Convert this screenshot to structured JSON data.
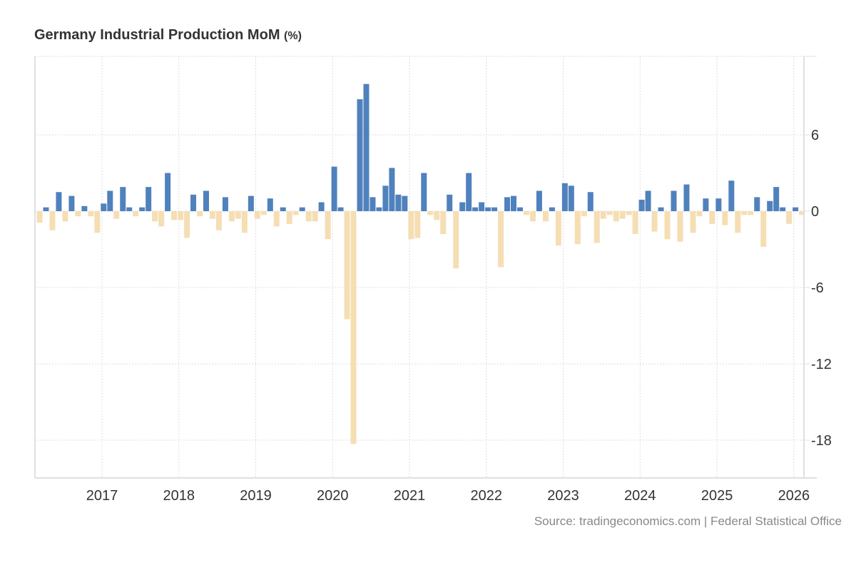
{
  "header": {
    "title": "Germany Industrial Production MoM",
    "unit": "(%)"
  },
  "footer": {
    "source": "Source: tradingeconomics.com | Federal Statistical Office"
  },
  "colors": {
    "positive": "#4f81bd",
    "negative": "#f5deb3",
    "grid": "#dddddd",
    "axis": "#e0e0e0",
    "label": "#333333"
  },
  "chart_data": {
    "type": "bar",
    "title": "Germany Industrial Production MoM (%)",
    "xlabel": "",
    "ylabel": "",
    "start_month": "2016-03",
    "end_month": "2026-02",
    "ylim": [
      -21,
      12
    ],
    "yticks": [
      6,
      0,
      -6,
      -12,
      -18
    ],
    "xticks": [
      "2017",
      "2018",
      "2019",
      "2020",
      "2021",
      "2022",
      "2023",
      "2024",
      "2025",
      "2026"
    ],
    "grid": true,
    "legend": "none",
    "y_axis_side": "right",
    "values": [
      -0.9,
      0.3,
      -1.5,
      1.5,
      -0.8,
      1.2,
      -0.4,
      0.4,
      -0.4,
      -1.7,
      0.6,
      1.6,
      -0.6,
      1.9,
      0.3,
      -0.4,
      0.3,
      1.9,
      -0.8,
      -1.2,
      3.0,
      -0.7,
      -0.7,
      -2.1,
      1.3,
      -0.4,
      1.6,
      -0.6,
      -1.5,
      1.1,
      -0.8,
      -0.6,
      -1.7,
      1.2,
      -0.6,
      -0.3,
      1.0,
      -1.2,
      0.3,
      -1.0,
      -0.3,
      0.3,
      -0.8,
      -0.8,
      0.7,
      -2.2,
      3.5,
      0.3,
      -8.5,
      -18.3,
      8.8,
      10.0,
      1.1,
      0.3,
      2.0,
      3.4,
      1.3,
      1.2,
      -2.2,
      -2.1,
      3.0,
      -0.3,
      -0.7,
      -1.8,
      1.3,
      -4.5,
      0.7,
      3.0,
      0.3,
      0.7,
      0.3,
      0.3,
      -4.4,
      1.1,
      1.2,
      0.3,
      -0.3,
      -0.8,
      1.6,
      -0.8,
      0.3,
      -2.7,
      2.2,
      2.0,
      -2.6,
      -0.4,
      1.5,
      -2.5,
      -0.6,
      -0.3,
      -0.8,
      -0.6,
      -0.3,
      -1.8,
      0.9,
      1.6,
      -1.6,
      0.3,
      -2.2,
      1.6,
      -2.4,
      2.1,
      -1.7,
      -0.4,
      1.0,
      -1.0,
      1.0,
      -1.1,
      2.4,
      -1.7,
      -0.3,
      -0.3,
      1.1,
      -2.8,
      0.8,
      1.9,
      0.3,
      -1.0,
      0.3,
      -0.3
    ]
  }
}
